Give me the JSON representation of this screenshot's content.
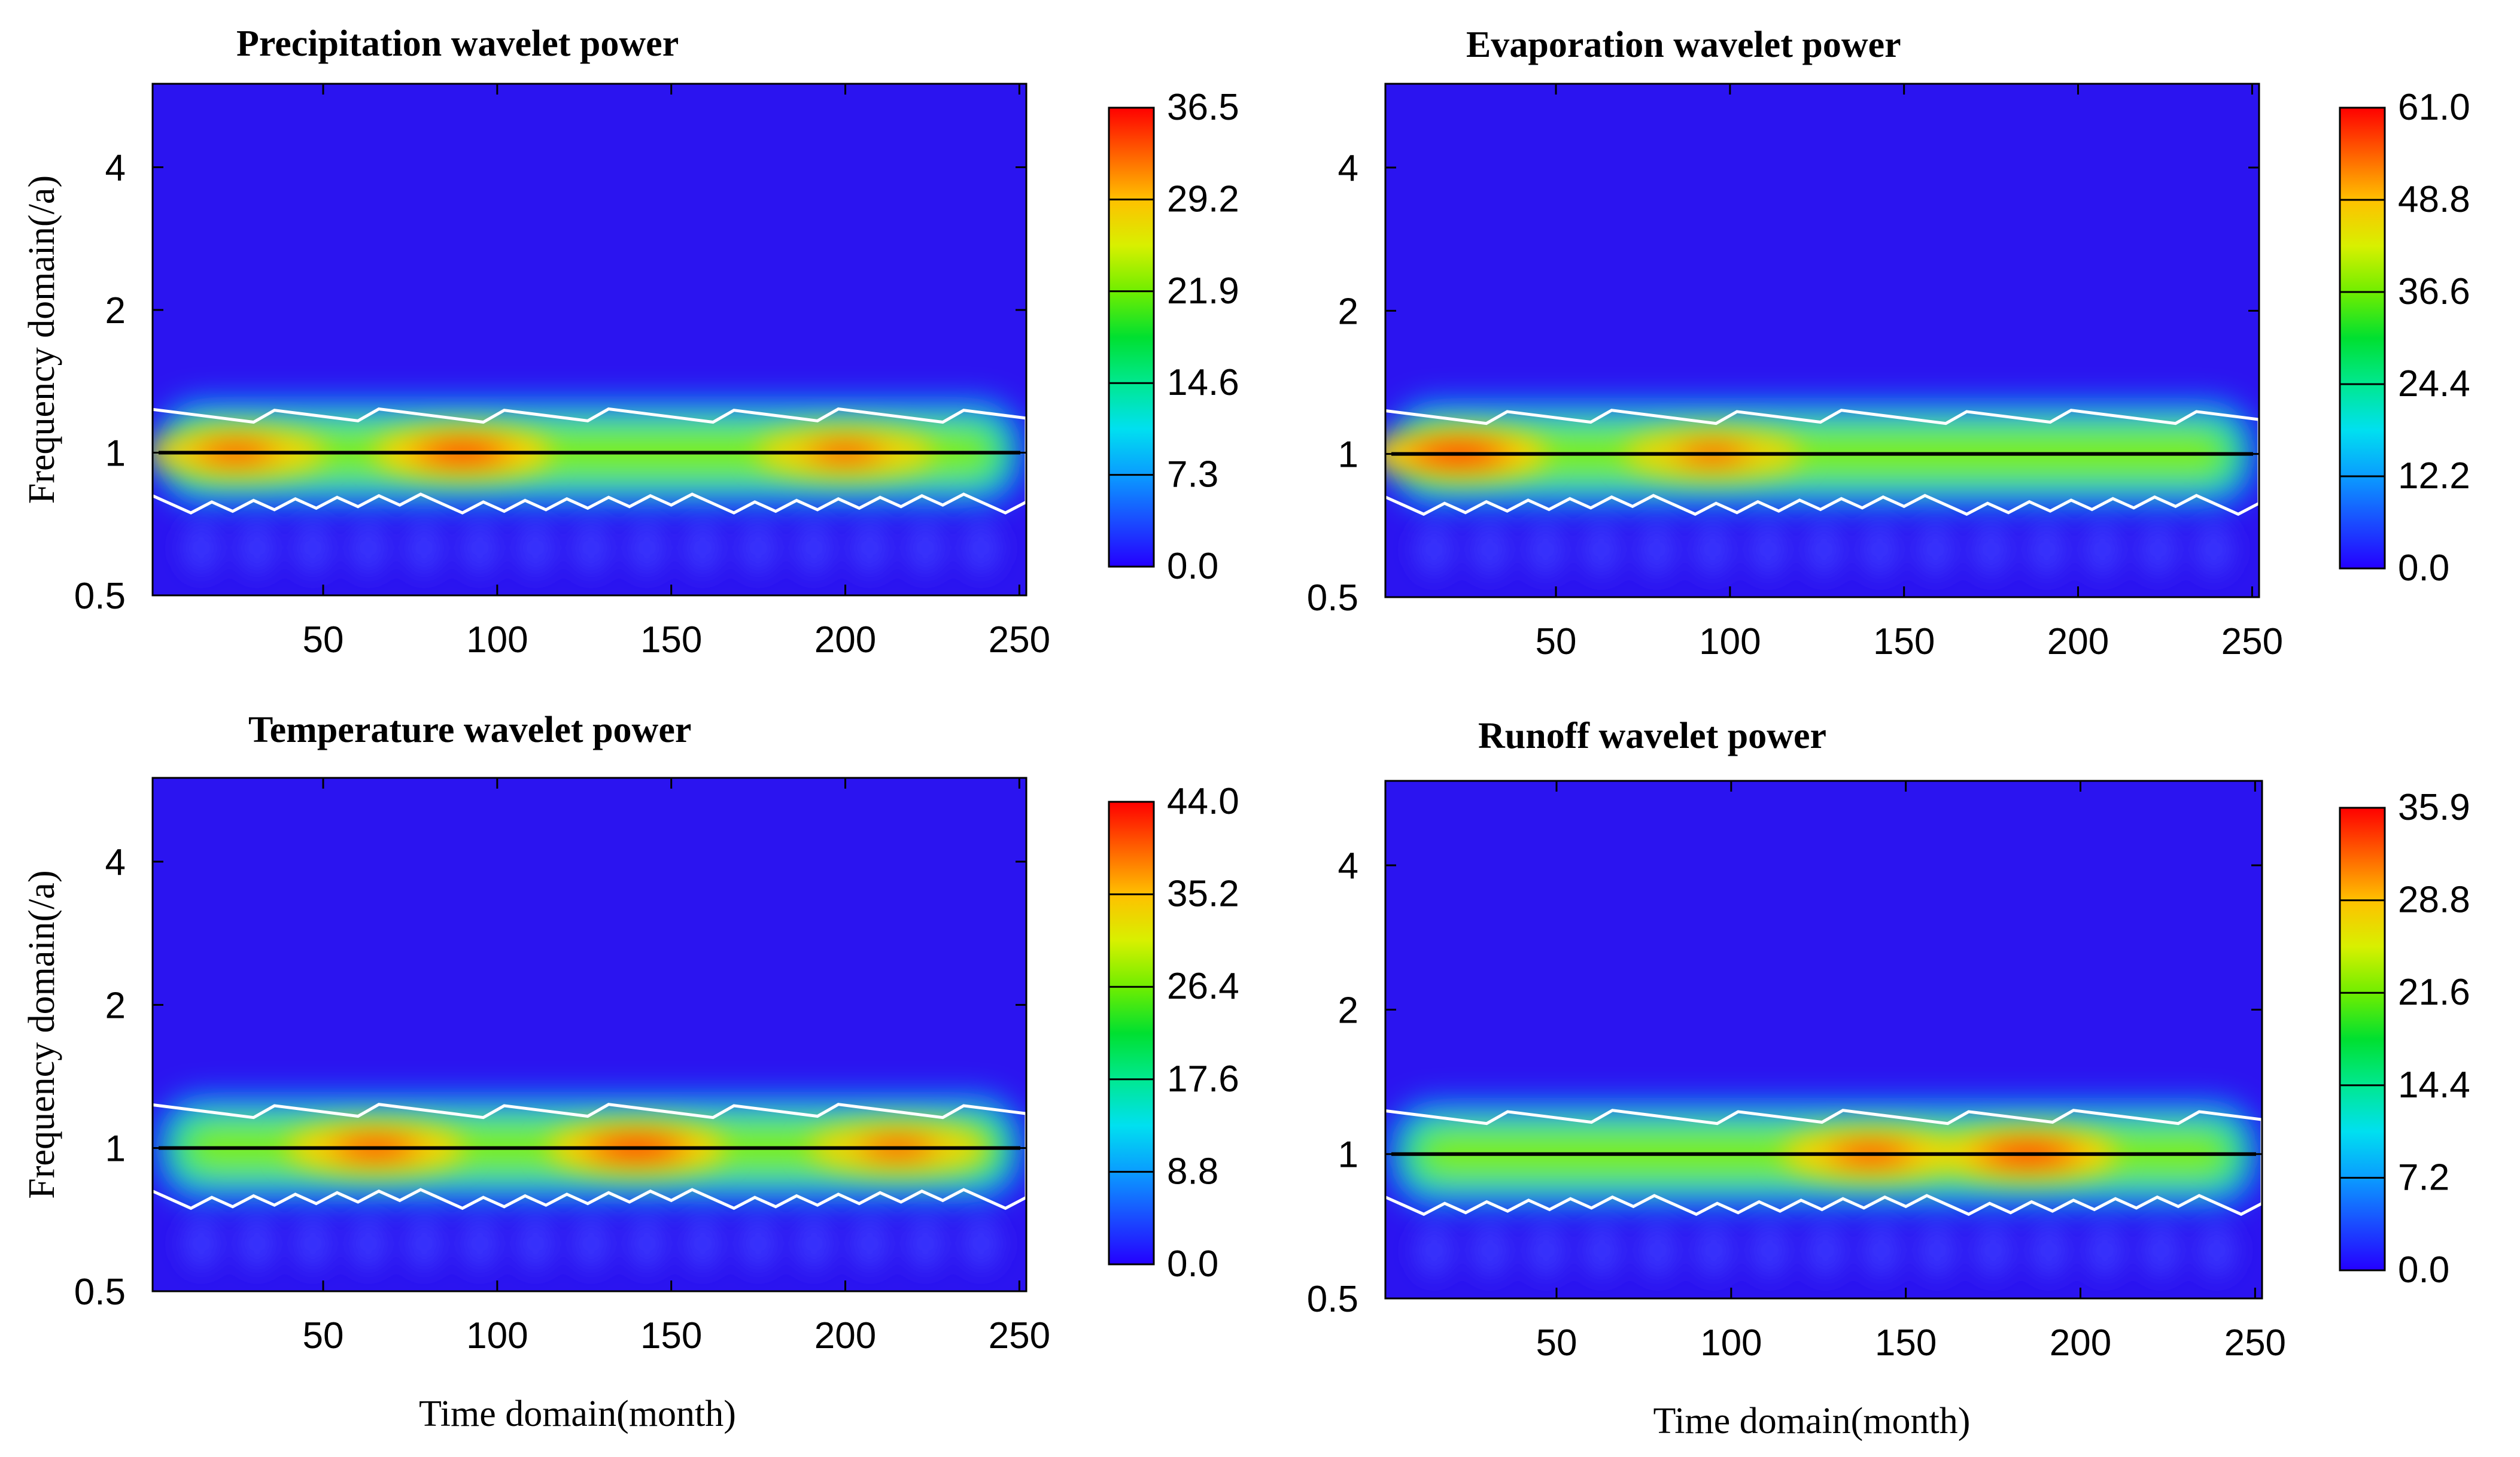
{
  "chart_data": [
    {
      "type": "heatmap",
      "title": "Precipitation wavelet power",
      "xlabel": "",
      "ylabel": "Frequency domain(/a)",
      "xlim": [
        1,
        252
      ],
      "xticks": [
        "50",
        "100",
        "150",
        "200",
        "250"
      ],
      "yticks": [
        "0.5",
        "1",
        "2",
        "4"
      ],
      "colorbar_ticks": [
        "0.0",
        "7.3",
        "14.6",
        "21.9",
        "29.2",
        "36.5"
      ],
      "colorbar_range": [
        0.0,
        36.5
      ],
      "ridge_frequency": 1,
      "hotspots": [
        {
          "time": 25,
          "power": 29
        },
        {
          "time": 90,
          "power": 34
        },
        {
          "time": 200,
          "power": 28
        }
      ],
      "colors": {
        "low": "#2b14f0",
        "high": "#ff0000",
        "contour": "#ffffff",
        "ridge": "#000000"
      }
    },
    {
      "type": "heatmap",
      "title": "Evaporation wavelet power",
      "xlabel": "",
      "ylabel": "",
      "xlim": [
        1,
        252
      ],
      "xticks": [
        "50",
        "100",
        "150",
        "200",
        "250"
      ],
      "yticks": [
        "0.5",
        "1",
        "2",
        "4"
      ],
      "colorbar_ticks": [
        "0.0",
        "12.2",
        "24.4",
        "36.6",
        "48.8",
        "61.0"
      ],
      "colorbar_range": [
        0.0,
        61.0
      ],
      "ridge_frequency": 1,
      "hotspots": [
        {
          "time": 22,
          "power": 60
        },
        {
          "time": 95,
          "power": 45
        }
      ],
      "colors": {
        "low": "#2b14f0",
        "high": "#ff0000",
        "contour": "#ffffff",
        "ridge": "#000000"
      }
    },
    {
      "type": "heatmap",
      "title": "Temperature wavelet power",
      "xlabel": "Time domain(month)",
      "ylabel": "Frequency domain(/a)",
      "xlim": [
        1,
        252
      ],
      "xticks": [
        "50",
        "100",
        "150",
        "200",
        "250"
      ],
      "yticks": [
        "0.5",
        "1",
        "2",
        "4"
      ],
      "colorbar_ticks": [
        "0.0",
        "8.8",
        "17.6",
        "26.4",
        "35.2",
        "44.0"
      ],
      "colorbar_range": [
        0.0,
        44.0
      ],
      "ridge_frequency": 1,
      "hotspots": [
        {
          "time": 65,
          "power": 38
        },
        {
          "time": 140,
          "power": 43
        },
        {
          "time": 215,
          "power": 34
        }
      ],
      "colors": {
        "low": "#2b14f0",
        "high": "#ff0000",
        "contour": "#ffffff",
        "ridge": "#000000"
      }
    },
    {
      "type": "heatmap",
      "title": "Runoff wavelet power",
      "xlabel": "Time domain(month)",
      "ylabel": "",
      "xlim": [
        1,
        252
      ],
      "xticks": [
        "50",
        "100",
        "150",
        "200",
        "250"
      ],
      "yticks": [
        "0.5",
        "1",
        "2",
        "4"
      ],
      "colorbar_ticks": [
        "0.0",
        "7.2",
        "14.4",
        "21.6",
        "28.8",
        "35.9"
      ],
      "colorbar_range": [
        0.0,
        35.9
      ],
      "ridge_frequency": 1,
      "hotspots": [
        {
          "time": 140,
          "power": 30
        },
        {
          "time": 185,
          "power": 35
        }
      ],
      "colors": {
        "low": "#2b14f0",
        "high": "#ff0000",
        "contour": "#ffffff",
        "ridge": "#000000"
      }
    }
  ]
}
